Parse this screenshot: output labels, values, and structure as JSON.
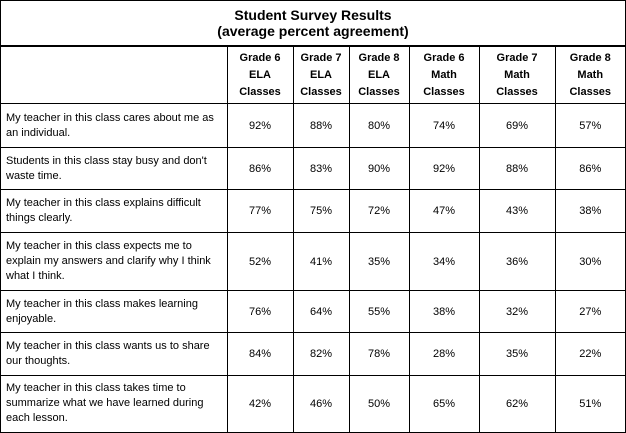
{
  "chart_data": {
    "type": "table",
    "title": "Student Survey Results",
    "subtitle": "(average percent agreement)",
    "columns": [
      {
        "lines": [
          "Grade 6",
          "ELA",
          "Classes"
        ]
      },
      {
        "lines": [
          "Grade 7",
          "ELA",
          "Classes"
        ]
      },
      {
        "lines": [
          "Grade 8",
          "ELA",
          "Classes"
        ]
      },
      {
        "lines": [
          "Grade 6",
          "Math",
          "Classes"
        ]
      },
      {
        "lines": [
          "Grade 7",
          "Math",
          "Classes"
        ]
      },
      {
        "lines": [
          "Grade 8",
          "Math",
          "Classes"
        ]
      }
    ],
    "rows": [
      {
        "label": "My teacher in this class cares about me as an individual.",
        "values": [
          "92%",
          "88%",
          "80%",
          "74%",
          "69%",
          "57%"
        ]
      },
      {
        "label": "Students in this class stay busy and don't waste time.",
        "values": [
          "86%",
          "83%",
          "90%",
          "92%",
          "88%",
          "86%"
        ]
      },
      {
        "label": "My teacher in this class explains difficult things clearly.",
        "values": [
          "77%",
          "75%",
          "72%",
          "47%",
          "43%",
          "38%"
        ]
      },
      {
        "label": "My teacher in this class expects me to explain my answers and clarify why I think what I think.",
        "values": [
          "52%",
          "41%",
          "35%",
          "34%",
          "36%",
          "30%"
        ]
      },
      {
        "label": "My teacher in this class makes learning enjoyable.",
        "values": [
          "76%",
          "64%",
          "55%",
          "38%",
          "32%",
          "27%"
        ]
      },
      {
        "label": "My teacher in this class wants us to share our thoughts.",
        "values": [
          "84%",
          "82%",
          "78%",
          "28%",
          "35%",
          "22%"
        ]
      },
      {
        "label": "My teacher in this class takes time to summarize what we have learned during each lesson.",
        "values": [
          "42%",
          "46%",
          "50%",
          "65%",
          "62%",
          "51%"
        ]
      }
    ]
  }
}
